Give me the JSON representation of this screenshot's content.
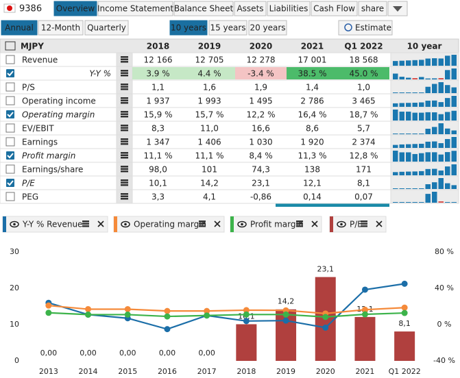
{
  "header": {
    "ticker": "9386",
    "tabs": [
      "Overview",
      "Income Statement",
      "Balance Sheet",
      "Assets",
      "Liabilities",
      "Cash Flow",
      "share"
    ],
    "active": 0
  },
  "toolbar": {
    "periods": [
      "Annual",
      "12-Month",
      "Quarterly"
    ],
    "period_active": 0,
    "ranges": [
      "10 years",
      "15 years",
      "20 years"
    ],
    "range_active": 0,
    "estimate": "Estimate"
  },
  "table": {
    "unit": "MJPY",
    "columns": [
      "2018",
      "2019",
      "2020",
      "2021",
      "Q1 2022"
    ],
    "spark_header": "10 year",
    "rows": [
      {
        "label": "Revenue",
        "checked": false,
        "cells": [
          "12 166",
          "12 705",
          "12 278",
          "17 001",
          "18 568"
        ],
        "spark": [
          8000,
          8500,
          9000,
          9500,
          10000,
          12166,
          12705,
          12278,
          17001,
          18568
        ]
      },
      {
        "label": "Y-Y %",
        "checked": true,
        "label_color": "#2a72c8",
        "cells": [
          "3.9 %",
          "4.4 %",
          "-3.4 %",
          "38.5 %",
          "45.0 %"
        ],
        "cell_fills": [
          "#c6e8c6",
          "#c6e8c6",
          "#f4c4c4",
          "#4cbb6a",
          "#4cbb6a"
        ],
        "spark": [
          24,
          11,
          7,
          -5,
          10,
          3.9,
          4.4,
          -3.4,
          38.5,
          45
        ]
      },
      {
        "label": "P/S",
        "checked": false,
        "cells": [
          "1,1",
          "1,6",
          "1,9",
          "1,4",
          "1,0"
        ],
        "spark": [
          0.1,
          0.1,
          0.1,
          0.1,
          0.1,
          1.1,
          1.6,
          1.9,
          1.4,
          1.0
        ]
      },
      {
        "label": "Operating income",
        "checked": false,
        "cells": [
          "1 937",
          "1 993",
          "1 495",
          "2 786",
          "3 465"
        ],
        "spark": [
          1100,
          1200,
          1250,
          1300,
          1400,
          1937,
          1993,
          1495,
          2786,
          3465
        ]
      },
      {
        "label": "Operating margin",
        "checked": true,
        "text_color": "#2a9a2a",
        "cells": [
          "15,9 %",
          "15,7 %",
          "12,2 %",
          "16,4 %",
          "18,7 %"
        ],
        "spark": [
          21,
          17,
          17,
          15,
          15,
          15.9,
          15.7,
          12.2,
          16.4,
          18.7
        ]
      },
      {
        "label": "EV/EBIT",
        "checked": false,
        "cells": [
          "8,3",
          "11,0",
          "16,6",
          "8,6",
          "5,7"
        ],
        "spark": [
          1,
          1,
          1,
          1,
          1,
          8.3,
          11.0,
          16.6,
          8.6,
          5.7
        ]
      },
      {
        "label": "Earnings",
        "checked": false,
        "cells": [
          "1 347",
          "1 406",
          "1 030",
          "1 920",
          "2 374"
        ],
        "spark": [
          650,
          750,
          800,
          850,
          900,
          1347,
          1406,
          1030,
          1920,
          2374
        ]
      },
      {
        "label": "Profit margin",
        "checked": true,
        "text_color": "#2a9a2a",
        "cells": [
          "11,1 %",
          "11,1 %",
          "8,4 %",
          "11,3 %",
          "12,8 %"
        ],
        "spark": [
          13,
          11,
          11,
          9,
          10,
          11.1,
          11.1,
          8.4,
          11.3,
          12.8
        ]
      },
      {
        "label": "Earnings/share",
        "checked": false,
        "cells": [
          "98,0",
          "101",
          "74,3",
          "138",
          "171"
        ],
        "spark": [
          50,
          55,
          58,
          60,
          65,
          98,
          101,
          74.3,
          138,
          171
        ]
      },
      {
        "label": "P/E",
        "checked": true,
        "cells": [
          "10,1",
          "14,2",
          "23,1",
          "12,1",
          "8,1"
        ],
        "spark": [
          1,
          1,
          1,
          1,
          1,
          10.1,
          14.2,
          23.1,
          12.1,
          8.1
        ]
      },
      {
        "label": "PEG",
        "checked": false,
        "cells": [
          "3,3",
          "4,1",
          "-0,86",
          "0,14",
          "0,07"
        ],
        "spark": [
          0.1,
          0.1,
          0.1,
          0.1,
          0.1,
          3.3,
          4.1,
          -0.86,
          0.14,
          0.07
        ]
      }
    ]
  },
  "chart_data": {
    "type": "combo",
    "categories": [
      "2013",
      "2014",
      "2015",
      "2016",
      "2017",
      "2018",
      "2019",
      "2020",
      "2021",
      "Q1 2022"
    ],
    "ylim": [
      0,
      30
    ],
    "yticks": [
      0,
      10,
      20,
      30
    ],
    "y2lim": [
      -40,
      80
    ],
    "y2ticks": [
      {
        "value": -40,
        "label": "-40 %"
      },
      {
        "value": 0,
        "label": "0 %"
      },
      {
        "value": 40,
        "label": "40 %"
      },
      {
        "value": 80,
        "label": "80 %"
      }
    ],
    "series": [
      {
        "name": "Y-Y % Revenue",
        "type": "line",
        "axis": "y2",
        "color": "#1b6ea8",
        "values": [
          24,
          11,
          7,
          -5,
          10,
          3.9,
          4.4,
          -3.4,
          38.5,
          45.0
        ]
      },
      {
        "name": "Operating margin",
        "type": "line",
        "axis": "y2",
        "color": "#f58a3a",
        "values": [
          21,
          17,
          17,
          15,
          15,
          15.9,
          15.7,
          12.2,
          16.4,
          18.7
        ]
      },
      {
        "name": "Profit margin",
        "type": "line",
        "axis": "y2",
        "color": "#3cb34a",
        "values": [
          13,
          11,
          11,
          9,
          10,
          11.1,
          11.1,
          8.4,
          11.3,
          12.8
        ]
      },
      {
        "name": "P/E",
        "type": "bar",
        "color": "#b0403e",
        "values": [
          0,
          0,
          0,
          0,
          0,
          10.1,
          14.2,
          23.1,
          12.1,
          8.1
        ],
        "value_labels": [
          "0,00",
          "0,00",
          "0,00",
          "0,00",
          "0,00",
          "10,1",
          "14,2",
          "23,1",
          "12,1",
          "8,1"
        ]
      }
    ]
  }
}
